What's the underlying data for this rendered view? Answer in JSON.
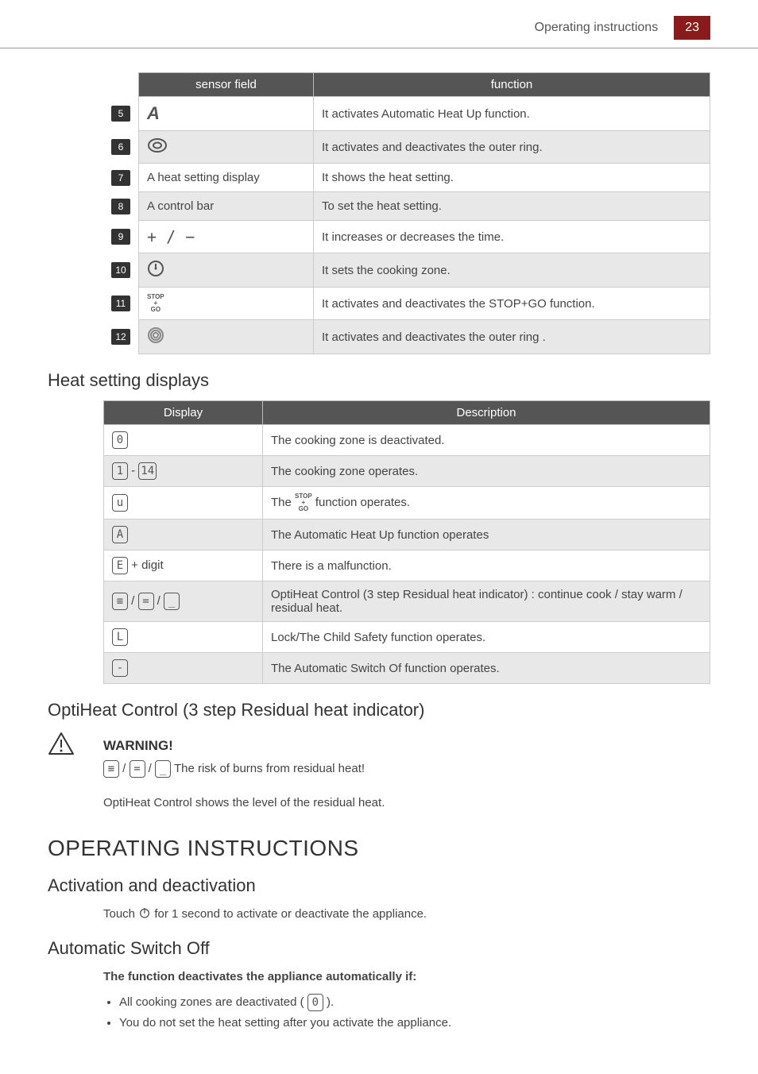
{
  "header": {
    "title": "Operating instructions",
    "page": "23"
  },
  "sensor_table": {
    "head": {
      "c1": "sensor field",
      "c2": "function"
    },
    "rows": [
      {
        "num": "5",
        "field_type": "sym-a",
        "field": "A",
        "func": "It activates Automatic Heat Up function."
      },
      {
        "num": "6",
        "field_type": "svg-oval",
        "field": "",
        "func": "It activates and deactivates the outer ring."
      },
      {
        "num": "7",
        "field_type": "text",
        "field": "A heat setting display",
        "func": "It shows the heat setting."
      },
      {
        "num": "8",
        "field_type": "text",
        "field": "A control bar",
        "func": "To set the heat setting."
      },
      {
        "num": "9",
        "field_type": "plusminus",
        "field": "+ / −",
        "func": "It increases or decreases the time."
      },
      {
        "num": "10",
        "field_type": "svg-clock",
        "field": "",
        "func": "It sets the cooking zone."
      },
      {
        "num": "11",
        "field_type": "stopgo",
        "field": "",
        "func": "It activates and deactivates the STOP+GO function."
      },
      {
        "num": "12",
        "field_type": "svg-ring",
        "field": "",
        "func": "It activates and deactivates the outer ring ."
      }
    ]
  },
  "heat_heading": "Heat setting displays",
  "heat_table": {
    "head": {
      "c1": "Display",
      "c2": "Description"
    },
    "rows": [
      {
        "disp_html": "seg-0",
        "desc": "The cooking zone is deactivated."
      },
      {
        "disp_html": "seg-range",
        "desc": "The cooking zone operates."
      },
      {
        "disp_html": "seg-u",
        "desc_pre": "The ",
        "desc_post": " function operates."
      },
      {
        "disp_html": "seg-A",
        "desc": "The Automatic Heat Up function operates"
      },
      {
        "disp_html": "seg-E-digit",
        "desc": "There is a malfunction."
      },
      {
        "disp_html": "seg-bars",
        "desc": "OptiHeat Control (3 step Residual heat indicator) : continue cook / stay warm / residual heat."
      },
      {
        "disp_html": "seg-L",
        "desc": "Lock/The Child Safety function operates."
      },
      {
        "disp_html": "seg-dash",
        "desc": "The Automatic Switch Of function operates."
      }
    ]
  },
  "opti_heading": "OptiHeat Control (3 step Residual heat indicator)",
  "warning": {
    "label": "WARNING!",
    "text": " The risk of burns from residual heat!"
  },
  "opti_text": "OptiHeat Control shows the level of the residual heat.",
  "oper_heading": "OPERATING INSTRUCTIONS",
  "activation": {
    "heading": "Activation and deactivation",
    "pre": "Touch ",
    "post": " for 1 second to activate or deactivate the appliance."
  },
  "auto_off": {
    "heading": "Automatic Switch Off",
    "sub": "The function deactivates the appliance automatically if:",
    "b1_pre": "All cooking zones are deactivated ( ",
    "b1_post": " ).",
    "b2": "You do not set the heat setting after you activate the appliance."
  }
}
